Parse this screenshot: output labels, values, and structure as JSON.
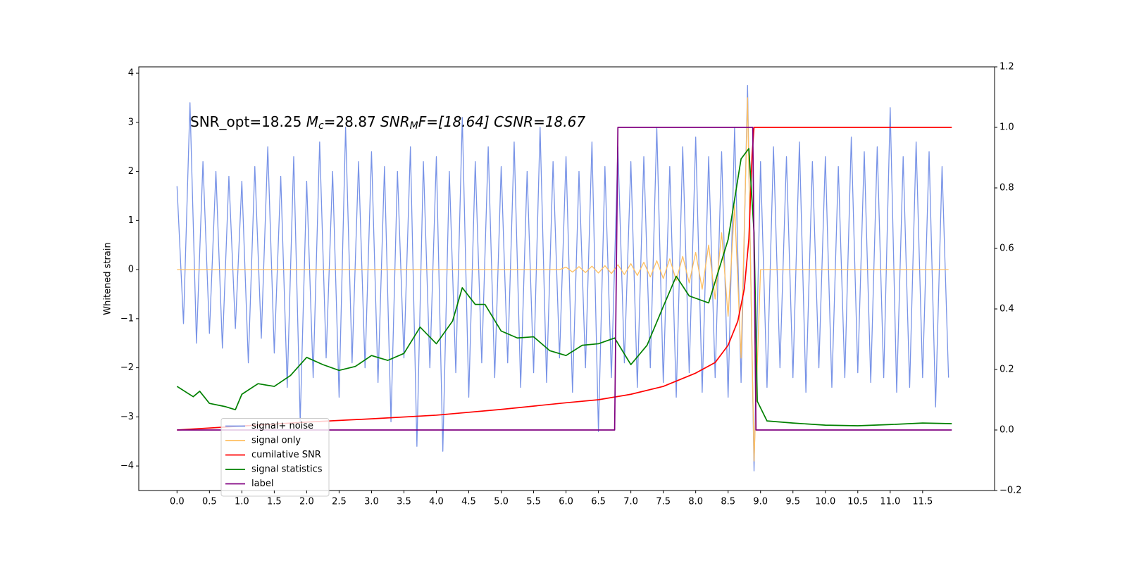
{
  "chart_data": {
    "type": "line",
    "ylabel": "Whitened strain",
    "annotation": [
      "SNR_opt=18.25 ",
      "M",
      "c",
      "=28.87 ",
      "SNR",
      "M",
      "F=[18.64] CSNR=18.67"
    ],
    "xlim": [
      -0.59,
      12.61
    ],
    "ylim": [
      -4.5,
      4.13
    ],
    "y2lim": [
      -0.2,
      1.2
    ],
    "xticks": [
      {
        "value": 0,
        "label": "0.0"
      },
      {
        "value": 0.5,
        "label": "0.5"
      },
      {
        "value": 1,
        "label": "1.0"
      },
      {
        "value": 1.5,
        "label": "1.5"
      },
      {
        "value": 2,
        "label": "2.0"
      },
      {
        "value": 2.5,
        "label": "2.5"
      },
      {
        "value": 3,
        "label": "3.0"
      },
      {
        "value": 3.5,
        "label": "3.5"
      },
      {
        "value": 4,
        "label": "4.0"
      },
      {
        "value": 4.5,
        "label": "4.5"
      },
      {
        "value": 5,
        "label": "5.0"
      },
      {
        "value": 5.5,
        "label": "5.5"
      },
      {
        "value": 6,
        "label": "6.0"
      },
      {
        "value": 6.5,
        "label": "6.5"
      },
      {
        "value": 7,
        "label": "7.0"
      },
      {
        "value": 7.5,
        "label": "7.5"
      },
      {
        "value": 8,
        "label": "8.0"
      },
      {
        "value": 8.5,
        "label": "8.5"
      },
      {
        "value": 9,
        "label": "9.0"
      },
      {
        "value": 9.5,
        "label": "9.5"
      },
      {
        "value": 10,
        "label": "10.0"
      },
      {
        "value": 10.5,
        "label": "10.5"
      },
      {
        "value": 11,
        "label": "11.0"
      },
      {
        "value": 11.5,
        "label": "11.5"
      }
    ],
    "yticks": [
      {
        "value": -4,
        "label": "−4"
      },
      {
        "value": -3,
        "label": "−3"
      },
      {
        "value": -2,
        "label": "−2"
      },
      {
        "value": -1,
        "label": "−1"
      },
      0,
      1,
      2,
      3,
      4
    ],
    "y2ticks": [
      {
        "value": -0.2,
        "label": "−0.2"
      },
      {
        "value": 0,
        "label": "0.0"
      },
      {
        "value": 0.2,
        "label": "0.2"
      },
      {
        "value": 0.4,
        "label": "0.4"
      },
      {
        "value": 0.6,
        "label": "0.6"
      },
      {
        "value": 0.8,
        "label": "0.8"
      },
      {
        "value": 1,
        "label": "1.0"
      },
      {
        "value": 1.2,
        "label": "1.2"
      }
    ],
    "legend": "lower left",
    "series": [
      {
        "name": "signal+ noise",
        "color": "#7893e7",
        "x": [
          0,
          0.1,
          0.2,
          0.3,
          0.4,
          0.5,
          0.6,
          0.7,
          0.8,
          0.9,
          1,
          1.1,
          1.2,
          1.3,
          1.4,
          1.5,
          1.6,
          1.7,
          1.8,
          1.9,
          2,
          2.1,
          2.2,
          2.3,
          2.4,
          2.5,
          2.6,
          2.7,
          2.8,
          2.9,
          3,
          3.1,
          3.2,
          3.3,
          3.4,
          3.5,
          3.6,
          3.7,
          3.8,
          3.9,
          4,
          4.1,
          4.2,
          4.3,
          4.4,
          4.5,
          4.6,
          4.7,
          4.8,
          4.9,
          5,
          5.1,
          5.2,
          5.3,
          5.4,
          5.5,
          5.6,
          5.7,
          5.8,
          5.9,
          6,
          6.1,
          6.2,
          6.3,
          6.4,
          6.5,
          6.6,
          6.7,
          6.8,
          6.9,
          7,
          7.1,
          7.2,
          7.3,
          7.4,
          7.5,
          7.6,
          7.7,
          7.8,
          7.9,
          8,
          8.1,
          8.2,
          8.3,
          8.4,
          8.5,
          8.6,
          8.7,
          8.8,
          8.9,
          9,
          9.1,
          9.2,
          9.3,
          9.4,
          9.5,
          9.6,
          9.7,
          9.8,
          9.9,
          10,
          10.1,
          10.2,
          10.3,
          10.4,
          10.5,
          10.6,
          10.7,
          10.8,
          10.9,
          11,
          11.1,
          11.2,
          11.3,
          11.4,
          11.5,
          11.6,
          11.7,
          11.8,
          11.9
        ],
        "values": [
          1.7,
          -1.1,
          3.4,
          -1.5,
          2.2,
          -1.3,
          2.0,
          -1.6,
          1.9,
          -1.2,
          1.8,
          -1.9,
          2.1,
          -1.4,
          2.5,
          -1.7,
          1.9,
          -2.4,
          2.3,
          -3.1,
          1.8,
          -2.2,
          2.6,
          -1.8,
          2.0,
          -2.6,
          2.9,
          -1.9,
          2.2,
          -2.0,
          2.4,
          -2.3,
          2.1,
          -3.1,
          2.0,
          -1.8,
          2.5,
          -3.6,
          2.2,
          -2.0,
          2.3,
          -3.7,
          2.0,
          -2.1,
          3.1,
          -2.6,
          2.2,
          -1.9,
          2.5,
          -2.2,
          2.1,
          -1.9,
          2.6,
          -2.4,
          2.0,
          -2.1,
          2.9,
          -2.3,
          2.2,
          -1.8,
          2.3,
          -2.5,
          2.0,
          -2.0,
          2.6,
          -3.3,
          2.1,
          -2.2,
          2.5,
          -1.9,
          2.2,
          -2.4,
          2.3,
          -2.0,
          2.9,
          -2.3,
          2.1,
          -2.6,
          2.5,
          -2.1,
          2.7,
          -2.5,
          2.3,
          -2.2,
          2.4,
          -2.6,
          2.9,
          -2.3,
          3.75,
          -4.1,
          2.2,
          -2.4,
          2.5,
          -2.0,
          2.3,
          -2.2,
          2.6,
          -2.5,
          2.2,
          -2.0,
          2.3,
          -2.4,
          2.1,
          -2.2,
          2.7,
          -2.1,
          2.4,
          -2.3,
          2.5,
          -2.2,
          3.3,
          -2.5,
          2.3,
          -2.4,
          2.6,
          -2.2,
          2.4,
          -2.8,
          2.1,
          -2.2
        ]
      },
      {
        "name": "signal only",
        "color": "#ffbf60",
        "x": [
          0,
          0.1,
          0.2,
          0.3,
          0.4,
          0.5,
          0.6,
          0.7,
          0.8,
          0.9,
          1,
          1.1,
          1.2,
          1.3,
          1.4,
          1.5,
          1.6,
          1.7,
          1.8,
          1.9,
          2,
          2.1,
          2.2,
          2.3,
          2.4,
          2.5,
          2.6,
          2.7,
          2.8,
          2.9,
          3,
          3.1,
          3.2,
          3.3,
          3.4,
          3.5,
          3.6,
          3.7,
          3.8,
          3.9,
          4,
          4.1,
          4.2,
          4.3,
          4.4,
          4.5,
          4.6,
          4.7,
          4.8,
          4.9,
          5,
          5.1,
          5.2,
          5.3,
          5.4,
          5.5,
          5.6,
          5.7,
          5.8,
          5.9,
          6,
          6.1,
          6.2,
          6.3,
          6.4,
          6.5,
          6.6,
          6.7,
          6.8,
          6.9,
          7,
          7.1,
          7.2,
          7.3,
          7.4,
          7.5,
          7.6,
          7.7,
          7.8,
          7.9,
          8,
          8.1,
          8.2,
          8.3,
          8.4,
          8.5,
          8.6,
          8.7,
          8.8,
          8.9,
          9,
          9.1,
          9.2,
          9.3,
          9.4,
          9.5,
          9.6,
          9.7,
          9.8,
          9.9,
          10,
          10.1,
          10.2,
          10.3,
          10.4,
          10.5,
          10.6,
          10.7,
          10.8,
          10.9,
          11,
          11.1,
          11.2,
          11.3,
          11.4,
          11.5,
          11.6,
          11.7,
          11.8,
          11.9
        ],
        "values": [
          0,
          0,
          0,
          0,
          0,
          0,
          0,
          0,
          0,
          0,
          0,
          0,
          0,
          0,
          0,
          0,
          0,
          0,
          0,
          0,
          0,
          0,
          0,
          0,
          0,
          0,
          0,
          0,
          0,
          0,
          0,
          0,
          0,
          0,
          0,
          0,
          0,
          0,
          0,
          0,
          0,
          0,
          0,
          0,
          0,
          0,
          0,
          0,
          0,
          0,
          0,
          0,
          0,
          0,
          0,
          0,
          0,
          0,
          0,
          0,
          0.05,
          -0.05,
          0.06,
          -0.06,
          0.07,
          -0.07,
          0.08,
          -0.08,
          0.1,
          -0.1,
          0.12,
          -0.12,
          0.15,
          -0.15,
          0.18,
          -0.18,
          0.22,
          -0.22,
          0.27,
          -0.27,
          0.35,
          -0.4,
          0.5,
          -0.6,
          0.75,
          -0.95,
          1.3,
          -1.8,
          3.5,
          -3.9,
          0,
          0,
          0,
          0,
          0,
          0,
          0,
          0,
          0,
          0,
          0,
          0,
          0,
          0,
          0,
          0,
          0,
          0,
          0,
          0,
          0,
          0,
          0,
          0,
          0,
          0,
          0,
          0,
          0,
          0
        ]
      },
      {
        "name": "cumilative SNR",
        "color": "#ff0000",
        "axis": "y2",
        "x": [
          0,
          1,
          2,
          3,
          4,
          5,
          6,
          6.5,
          7,
          7.5,
          8,
          8.3,
          8.5,
          8.65,
          8.75,
          8.82,
          8.87,
          8.9,
          11.95
        ],
        "values": [
          0,
          0.013,
          0.026,
          0.037,
          0.049,
          0.068,
          0.09,
          0.1,
          0.118,
          0.144,
          0.188,
          0.223,
          0.28,
          0.36,
          0.466,
          0.63,
          0.91,
          1.0,
          1.0
        ]
      },
      {
        "name": "signal statistics",
        "color": "#008000",
        "axis": "y2",
        "x": [
          0,
          0.25,
          0.35,
          0.5,
          0.75,
          0.9,
          1,
          1.25,
          1.5,
          1.75,
          2,
          2.25,
          2.5,
          2.75,
          3,
          3.25,
          3.5,
          3.75,
          4,
          4.25,
          4.4,
          4.6,
          4.75,
          5,
          5.25,
          5.5,
          5.75,
          6,
          6.25,
          6.5,
          6.75,
          7,
          7.25,
          7.5,
          7.7,
          7.9,
          8.2,
          8.5,
          8.7,
          8.82,
          8.9,
          8.95,
          9.1,
          9.5,
          10,
          10.5,
          11,
          11.5,
          11.95
        ],
        "values": [
          0.144,
          0.11,
          0.128,
          0.088,
          0.077,
          0.067,
          0.118,
          0.153,
          0.144,
          0.18,
          0.24,
          0.216,
          0.197,
          0.21,
          0.246,
          0.23,
          0.253,
          0.34,
          0.285,
          0.36,
          0.47,
          0.415,
          0.415,
          0.327,
          0.304,
          0.308,
          0.262,
          0.246,
          0.28,
          0.285,
          0.304,
          0.216,
          0.28,
          0.408,
          0.508,
          0.443,
          0.42,
          0.629,
          0.896,
          0.93,
          0.652,
          0.095,
          0.03,
          0.023,
          0.016,
          0.014,
          0.018,
          0.023,
          0.021
        ]
      },
      {
        "name": "label",
        "color": "#800080",
        "axis": "y2",
        "x": [
          0,
          6.75,
          6.8,
          8.88,
          8.93,
          11.95
        ],
        "values": [
          0,
          0,
          1,
          1,
          0,
          0
        ]
      }
    ]
  }
}
